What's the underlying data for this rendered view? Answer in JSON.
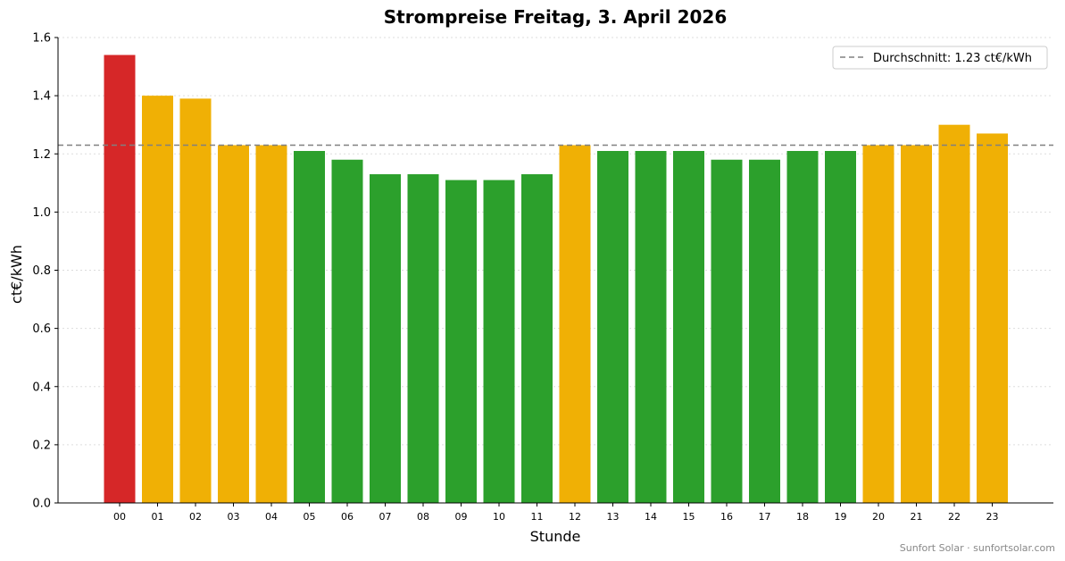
{
  "chart_data": {
    "type": "bar",
    "title": "Strompreise Freitag, 3. April 2026",
    "xlabel": "Stunde",
    "ylabel": "ct€/kWh",
    "ylim": [
      0,
      1.6
    ],
    "yticks": [
      "0.0",
      "0.2",
      "0.4",
      "0.6",
      "0.8",
      "1.0",
      "1.2",
      "1.4",
      "1.6"
    ],
    "categories": [
      "00",
      "01",
      "02",
      "03",
      "04",
      "05",
      "06",
      "07",
      "08",
      "09",
      "10",
      "11",
      "12",
      "13",
      "14",
      "15",
      "16",
      "17",
      "18",
      "19",
      "20",
      "21",
      "22",
      "23"
    ],
    "values": [
      1.54,
      1.4,
      1.39,
      1.23,
      1.23,
      1.21,
      1.18,
      1.13,
      1.13,
      1.11,
      1.11,
      1.13,
      1.23,
      1.21,
      1.21,
      1.21,
      1.18,
      1.18,
      1.21,
      1.21,
      1.23,
      1.23,
      1.3,
      1.27
    ],
    "bar_colors": [
      "#d62728",
      "#f0b005",
      "#f0b005",
      "#f0b005",
      "#f0b005",
      "#2ca02c",
      "#2ca02c",
      "#2ca02c",
      "#2ca02c",
      "#2ca02c",
      "#2ca02c",
      "#2ca02c",
      "#f0b005",
      "#2ca02c",
      "#2ca02c",
      "#2ca02c",
      "#2ca02c",
      "#2ca02c",
      "#2ca02c",
      "#2ca02c",
      "#f0b005",
      "#f0b005",
      "#f0b005",
      "#f0b005"
    ],
    "average": 1.23,
    "average_color": "#808080",
    "legend": {
      "label": "Durchschnitt: 1.23 ct€/kWh",
      "placement": "top-right"
    },
    "grid": "y-dotted"
  },
  "footer": "Sunfort Solar · sunfortsolar.com"
}
